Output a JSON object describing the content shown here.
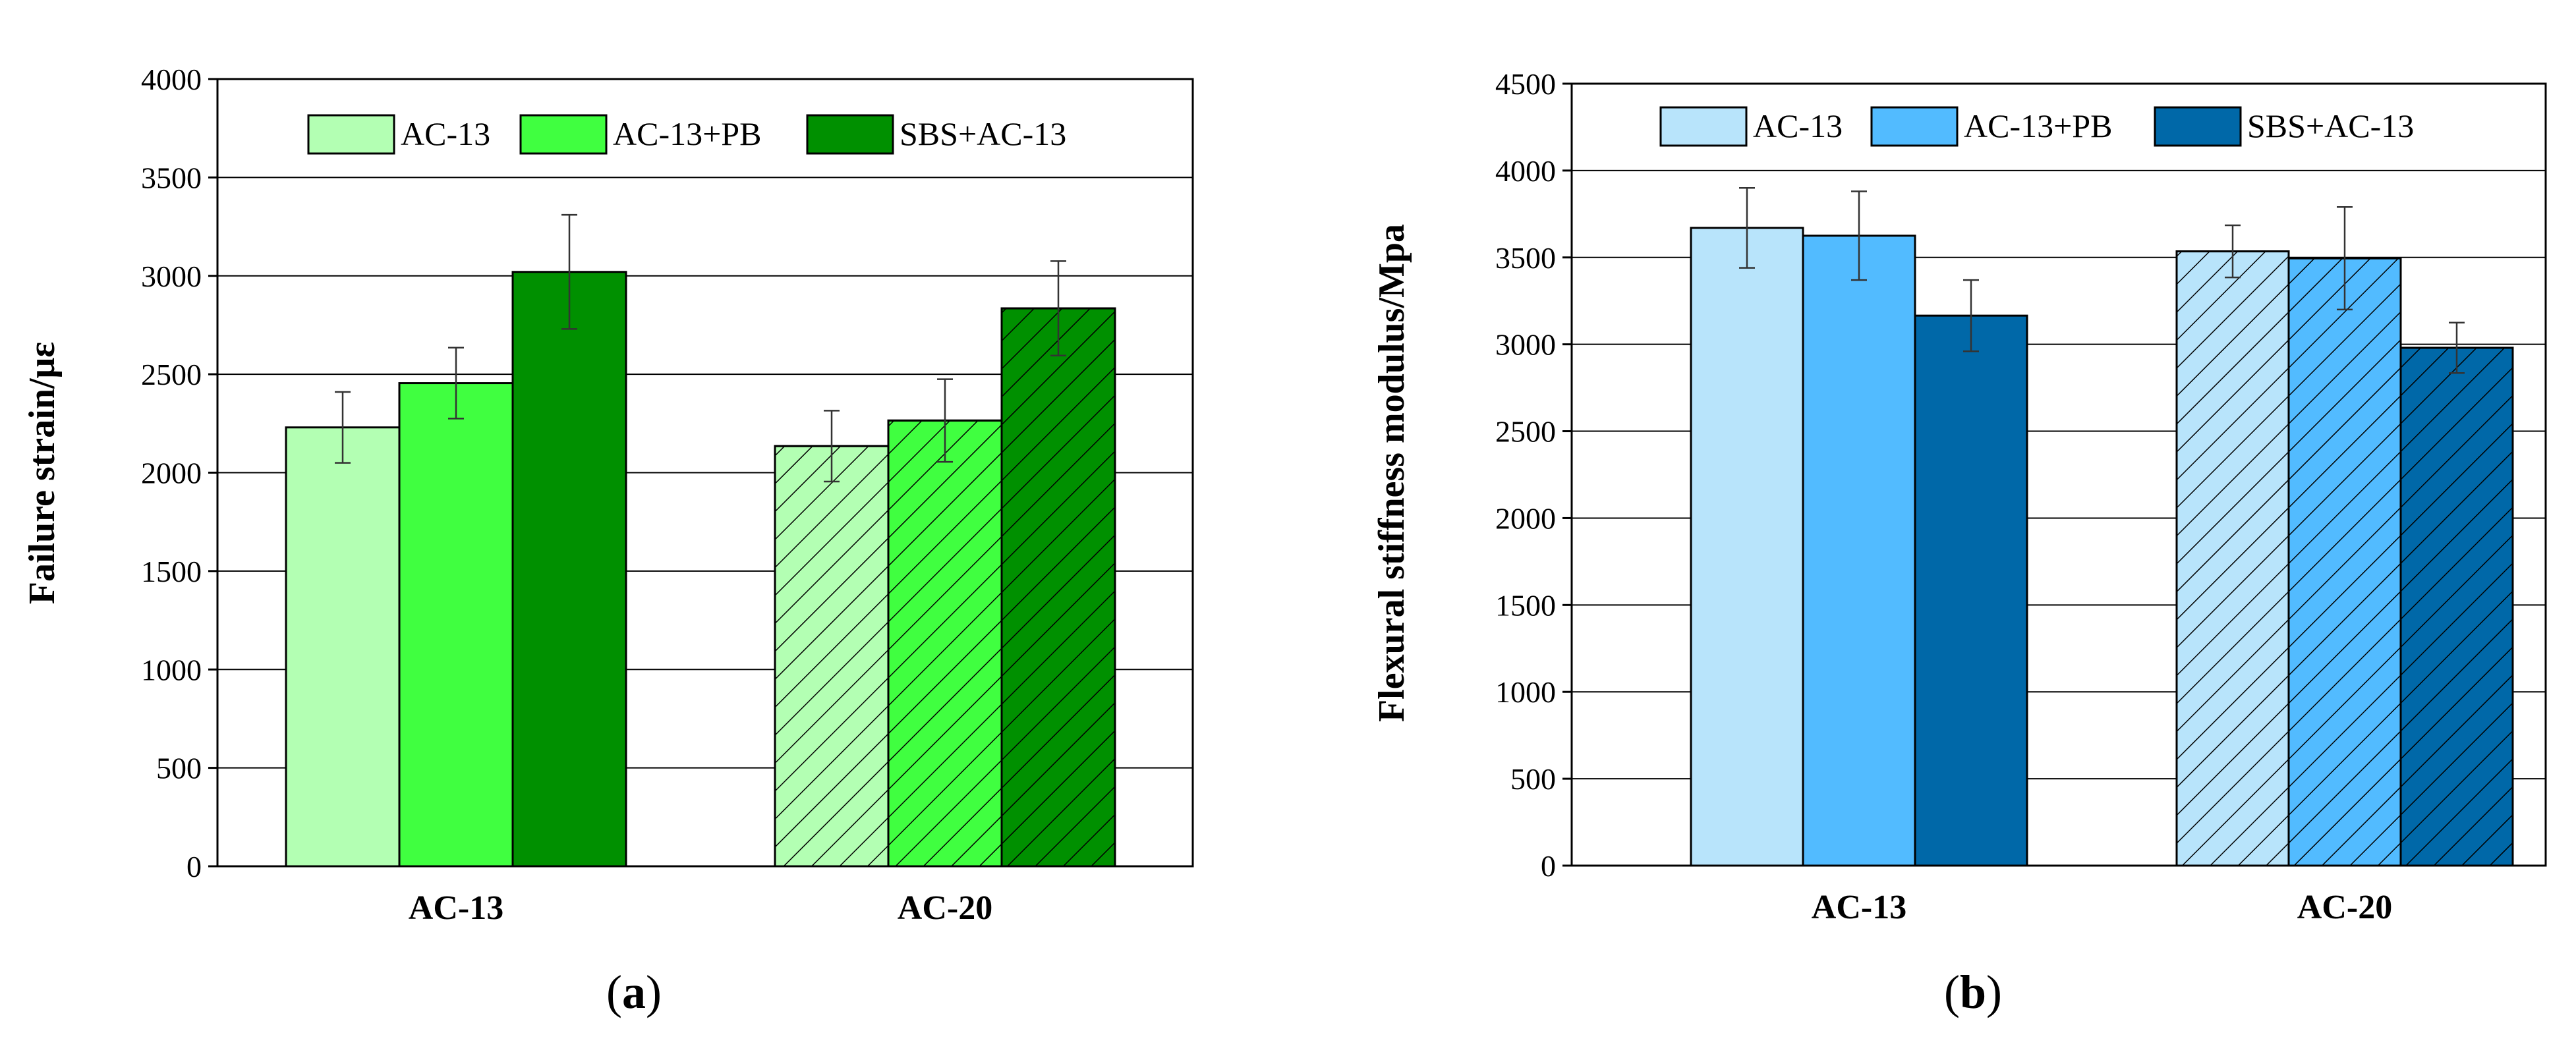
{
  "chart_data": [
    {
      "type": "bar",
      "panel": "a",
      "ylabel": "Failure strain/με",
      "ylim": [
        0,
        4000
      ],
      "yticks": [
        0,
        500,
        1000,
        1500,
        2000,
        2500,
        3000,
        3500,
        4000
      ],
      "categories": [
        "AC-13",
        "AC-20"
      ],
      "grid": "horizontal",
      "legend_position": "top",
      "series": [
        {
          "name": "AC-13",
          "values": [
            2230,
            2135
          ],
          "errors": [
            180,
            180
          ],
          "color": "#b3ffb3"
        },
        {
          "name": "AC-13+PB",
          "values": [
            2455,
            2265
          ],
          "errors": [
            180,
            210
          ],
          "color": "#40ff40"
        },
        {
          "name": "SBS+AC-13",
          "values": [
            3020,
            2835
          ],
          "errors": [
            290,
            240
          ],
          "color": "#009000"
        }
      ],
      "hatched_category": "AC-20"
    },
    {
      "type": "bar",
      "panel": "b",
      "ylabel": "Flexural stiffness modulus/Mpa",
      "ylim": [
        0,
        4500
      ],
      "yticks": [
        0,
        500,
        1000,
        1500,
        2000,
        2500,
        3000,
        3500,
        4000,
        4500
      ],
      "categories": [
        "AC-13",
        "AC-20"
      ],
      "grid": "horizontal",
      "legend_position": "top",
      "series": [
        {
          "name": "AC-13",
          "values": [
            3670,
            3535
          ],
          "errors": [
            230,
            150
          ],
          "color": "#b8e4fb"
        },
        {
          "name": "AC-13+PB",
          "values": [
            3625,
            3495
          ],
          "errors": [
            255,
            295
          ],
          "color": "#52bbff"
        },
        {
          "name": "SBS+AC-13",
          "values": [
            3165,
            2980
          ],
          "errors": [
            205,
            145
          ],
          "color": "#0068a8"
        }
      ],
      "hatched_category": "AC-20"
    }
  ]
}
